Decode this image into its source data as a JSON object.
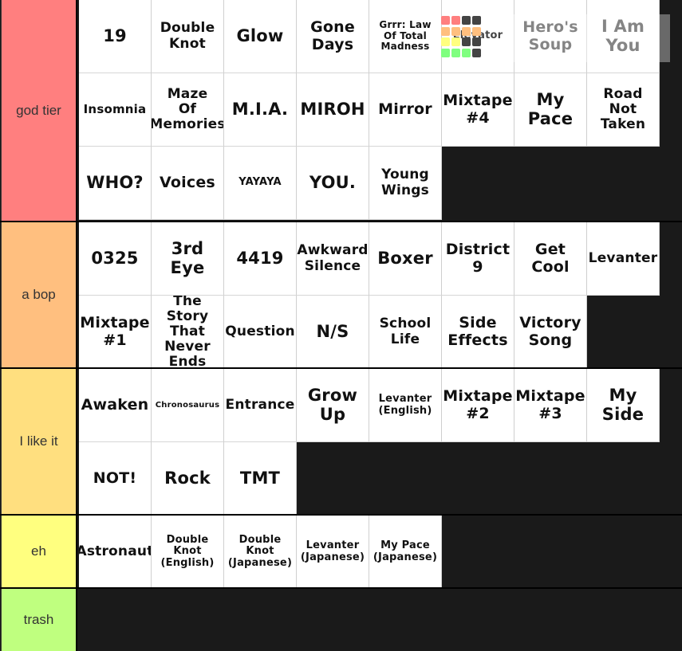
{
  "colors": {
    "background": "#1a1a1a",
    "cell_background": "#ffffff",
    "label_text": "#333333"
  },
  "tiers": [
    {
      "label": "god tier",
      "color": "#ff7f7f",
      "items": [
        "19",
        "Double Knot",
        "Glow",
        "Gone Days",
        "Grrr: Law Of Total Madness",
        "Elevator",
        "Hero's Soup",
        "I Am You",
        "Insomnia",
        "Maze Of Memories",
        "M.I.A.",
        "MIROH",
        "Mirror",
        "Mixtape #4",
        "My Pace",
        "Road Not Taken",
        "WHO?",
        "Voices",
        "YAYAYA",
        "YOU.",
        "Young Wings"
      ]
    },
    {
      "label": "a bop",
      "color": "#ffbf7f",
      "items": [
        "0325",
        "3rd Eye",
        "4419",
        "Awkward Silence",
        "Boxer",
        "District 9",
        "Get Cool",
        "Levanter",
        "Mixtape #1",
        "The Story That Never Ends",
        "Question",
        "N/S",
        "School Life",
        "Side Effects",
        "Victory Song"
      ]
    },
    {
      "label": "I like it",
      "color": "#ffdf7f",
      "items": [
        "Awaken",
        "Chronosaurus",
        "Entrance",
        "Grow Up",
        "Levanter (English)",
        "Mixtape #2",
        "Mixtape #3",
        "My Side",
        "NOT!",
        "Rock",
        "TMT"
      ]
    },
    {
      "label": "eh",
      "color": "#ffff7f",
      "items": [
        "Astronaut",
        "Double Knot (English)",
        "Double Knot (Japanese)",
        "Levanter (Japanese)",
        "My Pace (Japanese)"
      ]
    },
    {
      "label": "trash",
      "color": "#bfff7f",
      "items": []
    }
  ],
  "overlay_icon": {
    "name": "tier-list-grid-icon",
    "cells": [
      "#ff7f7f",
      "#ff7f7f",
      "#444444",
      "#444444",
      "#ffbf7f",
      "#ffbf7f",
      "#ffbf7f",
      "#ffbf7f",
      "#ffff7f",
      "#ffff7f",
      "#444444",
      "#444444",
      "#7fff7f",
      "#7fff7f",
      "#7fff7f",
      "#444444"
    ]
  }
}
